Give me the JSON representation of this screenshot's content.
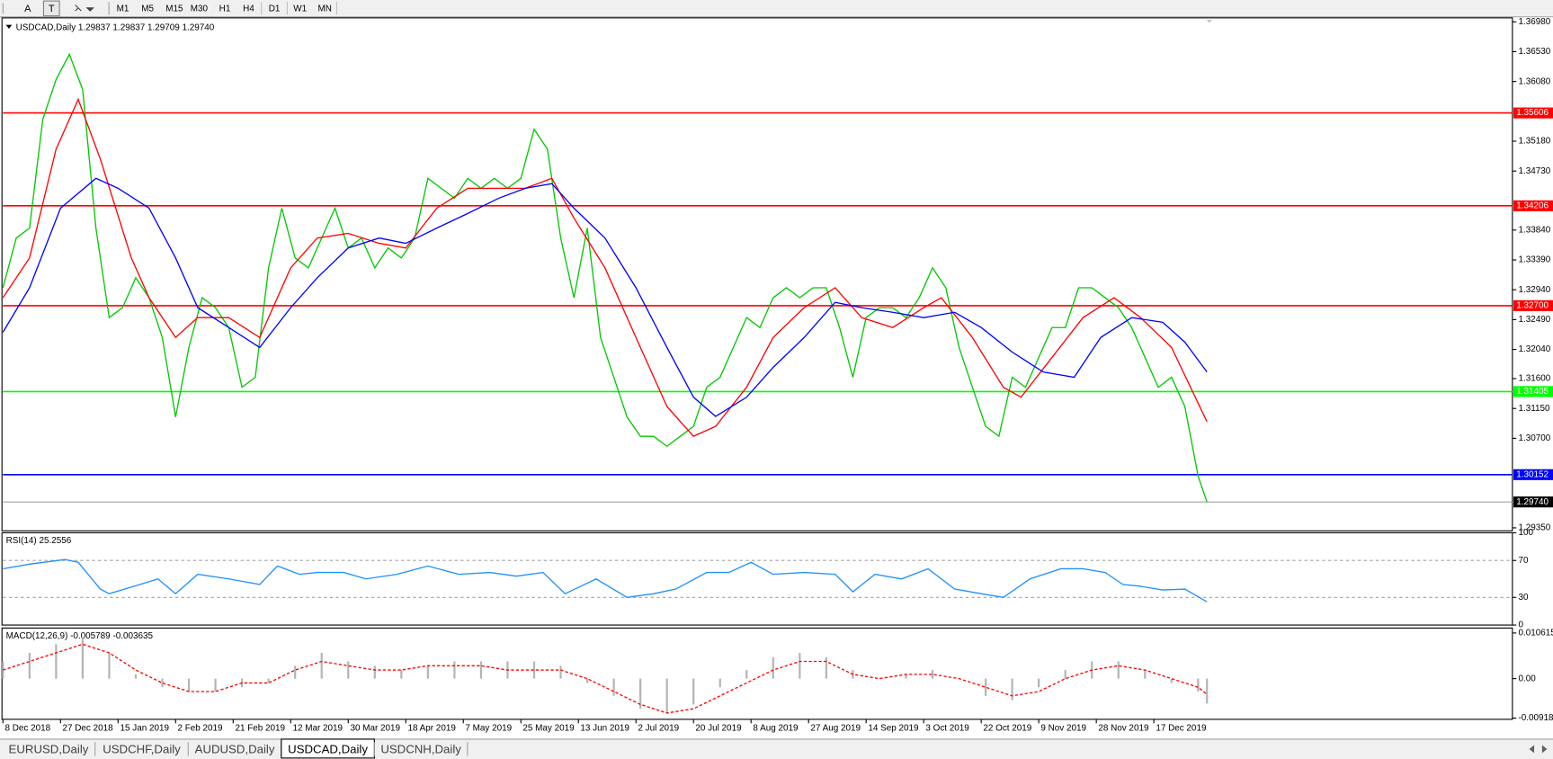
{
  "toolbar": {
    "tools": [
      "A",
      "T"
    ],
    "timeframes": [
      "M1",
      "M5",
      "M15",
      "M30",
      "H1",
      "H4",
      "D1",
      "W1",
      "MN"
    ]
  },
  "tabs": [
    {
      "label": "EURUSD,Daily",
      "active": false
    },
    {
      "label": "USDCHF,Daily",
      "active": false
    },
    {
      "label": "AUDUSD,Daily",
      "active": false
    },
    {
      "label": "USDCAD,Daily",
      "active": true
    },
    {
      "label": "USDCNH,Daily",
      "active": false
    }
  ],
  "chart_data": [
    {
      "type": "line",
      "title": "USDCAD,Daily  1.29837 1.29837 1.29709 1.29740",
      "xlim": [
        0,
        341
      ],
      "ylim": [
        1.29305,
        1.3704
      ],
      "yticks": [
        {
          "value": 1.3698,
          "label": "1.36980"
        },
        {
          "value": 1.3653,
          "label": "1.36530"
        },
        {
          "value": 1.3608,
          "label": "1.36080"
        },
        {
          "value": 1.3518,
          "label": "1.35180"
        },
        {
          "value": 1.3473,
          "label": "1.34730"
        },
        {
          "value": 1.3384,
          "label": "1.33840"
        },
        {
          "value": 1.3339,
          "label": "1.33390"
        },
        {
          "value": 1.3294,
          "label": "1.32940"
        },
        {
          "value": 1.3249,
          "label": "1.32490"
        },
        {
          "value": 1.3204,
          "label": "1.32040"
        },
        {
          "value": 1.316,
          "label": "1.31600"
        },
        {
          "value": 1.3115,
          "label": "1.31150"
        },
        {
          "value": 1.307,
          "label": "1.30700"
        },
        {
          "value": 1.2935,
          "label": "1.29350"
        }
      ],
      "levels": [
        {
          "value": 1.35606,
          "label": "1.35606",
          "color": "#ff0000"
        },
        {
          "value": 1.34206,
          "label": "1.34206",
          "color": "#ff0000"
        },
        {
          "value": 1.327,
          "label": "1.32700",
          "color": "#ff0000"
        },
        {
          "value": 1.31405,
          "label": "1.31405",
          "color": "#00ff00"
        },
        {
          "value": 1.30152,
          "label": "1.30152",
          "color": "#0000ff"
        }
      ],
      "last": {
        "value": 1.2974,
        "label": "1.29740"
      },
      "series": [
        {
          "color": "#00c800",
          "x": [
            0,
            3,
            6,
            9,
            12,
            15,
            18,
            21,
            24,
            27,
            30,
            33,
            36,
            39,
            42,
            45,
            48,
            51,
            54,
            57,
            60,
            63,
            66,
            69,
            72,
            75,
            78,
            81,
            84,
            87,
            90,
            93,
            96,
            99,
            102,
            105,
            108,
            111,
            114,
            117,
            120,
            123,
            126,
            129,
            132,
            135,
            138,
            141,
            144,
            147,
            150,
            153,
            156,
            159,
            162,
            165,
            168,
            171,
            174,
            177,
            180,
            183,
            186,
            189,
            192,
            195,
            198,
            201,
            204,
            207,
            210,
            213,
            216,
            219,
            222,
            225,
            228,
            231,
            234,
            237,
            240,
            243,
            246,
            249,
            252,
            255,
            258,
            261,
            264,
            267,
            270,
            272
          ],
          "values": [
            1.3297,
            1.3372,
            1.3387,
            1.3551,
            1.3611,
            1.3649,
            1.3596,
            1.3387,
            1.3252,
            1.3267,
            1.3312,
            1.3282,
            1.3222,
            1.3102,
            1.3207,
            1.3282,
            1.3267,
            1.3237,
            1.3147,
            1.3162,
            1.3327,
            1.3417,
            1.3342,
            1.3327,
            1.3372,
            1.3417,
            1.3357,
            1.3372,
            1.3327,
            1.3357,
            1.3342,
            1.3372,
            1.3462,
            1.3447,
            1.3432,
            1.3462,
            1.3447,
            1.3462,
            1.3447,
            1.3462,
            1.3536,
            1.3506,
            1.3372,
            1.3282,
            1.3387,
            1.3222,
            1.3162,
            1.3102,
            1.3073,
            1.3073,
            1.3058,
            1.3073,
            1.3088,
            1.3147,
            1.3162,
            1.3207,
            1.3252,
            1.3237,
            1.3282,
            1.3297,
            1.3282,
            1.3297,
            1.3297,
            1.3237,
            1.3162,
            1.3252,
            1.3267,
            1.3267,
            1.3252,
            1.3282,
            1.3327,
            1.3297,
            1.3207,
            1.3147,
            1.3088,
            1.3073,
            1.3162,
            1.3147,
            1.3192,
            1.3237,
            1.3237,
            1.3297,
            1.3297,
            1.3282,
            1.3267,
            1.3237,
            1.3192,
            1.3147,
            1.3162,
            1.3118,
            1.3013,
            1.2974
          ]
        },
        {
          "color": "#ff0000",
          "x": [
            0,
            6,
            12,
            17,
            22,
            29,
            33,
            39,
            44,
            51,
            58,
            65,
            71,
            78,
            85,
            91,
            98,
            105,
            112,
            118,
            124,
            129,
            136,
            143,
            150,
            156,
            161,
            168,
            174,
            181,
            188,
            194,
            201,
            208,
            212,
            219,
            226,
            230,
            237,
            244,
            251,
            257,
            264,
            272
          ],
          "values": [
            1.3282,
            1.3342,
            1.3506,
            1.3581,
            1.3491,
            1.3342,
            1.3282,
            1.3222,
            1.3252,
            1.3252,
            1.3222,
            1.3327,
            1.3372,
            1.3379,
            1.3364,
            1.3357,
            1.3417,
            1.3447,
            1.3447,
            1.3447,
            1.3462,
            1.3402,
            1.3327,
            1.3222,
            1.3118,
            1.3073,
            1.3088,
            1.3147,
            1.3222,
            1.3267,
            1.3297,
            1.3252,
            1.3237,
            1.3267,
            1.3282,
            1.3222,
            1.3147,
            1.3132,
            1.3192,
            1.3252,
            1.3282,
            1.3252,
            1.3207,
            1.3095
          ]
        },
        {
          "color": "#0000ff",
          "x": [
            0,
            6,
            13,
            21,
            26,
            33,
            39,
            44,
            51,
            58,
            65,
            71,
            78,
            85,
            91,
            98,
            105,
            112,
            118,
            124,
            129,
            136,
            143,
            150,
            156,
            161,
            168,
            174,
            181,
            188,
            194,
            201,
            208,
            215,
            221,
            228,
            235,
            242,
            248,
            255,
            262,
            267,
            272
          ],
          "values": [
            1.323,
            1.3297,
            1.3417,
            1.3462,
            1.3447,
            1.3417,
            1.3342,
            1.3267,
            1.3237,
            1.3207,
            1.3267,
            1.3312,
            1.3357,
            1.3372,
            1.3364,
            1.3387,
            1.3409,
            1.3432,
            1.3447,
            1.3454,
            1.3417,
            1.3372,
            1.3297,
            1.3207,
            1.3132,
            1.3103,
            1.3132,
            1.3177,
            1.3222,
            1.3275,
            1.3267,
            1.326,
            1.3252,
            1.326,
            1.3237,
            1.32,
            1.317,
            1.3162,
            1.3222,
            1.3252,
            1.3245,
            1.3215,
            1.317
          ]
        }
      ]
    },
    {
      "type": "line",
      "title": "RSI(14) 25.2556",
      "xlim": [
        0,
        341
      ],
      "ylim": [
        0,
        100
      ],
      "yticks": [
        100,
        70,
        30,
        0
      ],
      "dashed_levels": [
        70,
        30
      ],
      "series": [
        {
          "color": "#1e90ff",
          "x": [
            0,
            6,
            14,
            17,
            22,
            24,
            31,
            35,
            39,
            44,
            51,
            58,
            62,
            67,
            71,
            77,
            82,
            89,
            96,
            103,
            110,
            116,
            122,
            127,
            134,
            141,
            147,
            152,
            159,
            164,
            169,
            174,
            181,
            188,
            192,
            197,
            203,
            209,
            215,
            221,
            226,
            232,
            239,
            244,
            249,
            253,
            257,
            262,
            267,
            272
          ],
          "values": [
            61,
            66,
            71,
            68,
            39,
            34,
            44,
            50,
            34,
            55,
            50,
            44,
            64,
            55,
            57,
            57,
            50,
            55,
            64,
            55,
            57,
            53,
            57,
            34,
            50,
            30,
            34,
            39,
            57,
            57,
            68,
            55,
            57,
            55,
            36,
            55,
            50,
            61,
            39,
            34,
            30,
            50,
            61,
            61,
            57,
            44,
            42,
            38,
            39,
            25.2556
          ]
        }
      ]
    },
    {
      "type": "bar",
      "title": "MACD(12,26,9) -0.005789 -0.003635",
      "xlim": [
        0,
        341
      ],
      "ylim": [
        -0.00946,
        0.01177
      ],
      "yticks": [
        0.010615,
        {
          "value": 0,
          "label": "0.00"
        },
        -0.009181
      ],
      "xticks": [
        {
          "value": 0,
          "label": "8 Dec 2018"
        },
        {
          "value": 13,
          "label": "27 Dec 2018"
        },
        {
          "value": 26,
          "label": "15 Jan 2019"
        },
        {
          "value": 39,
          "label": "2 Feb 2019"
        },
        {
          "value": 52,
          "label": "21 Feb 2019"
        },
        {
          "value": 65,
          "label": "12 Mar 2019"
        },
        {
          "value": 78,
          "label": "30 Mar 2019"
        },
        {
          "value": 91,
          "label": "18 Apr 2019"
        },
        {
          "value": 104,
          "label": "7 May 2019"
        },
        {
          "value": 117,
          "label": "25 May 2019"
        },
        {
          "value": 130,
          "label": "13 Jun 2019"
        },
        {
          "value": 143,
          "label": "2 Jul 2019"
        },
        {
          "value": 156,
          "label": "20 Jul 2019"
        },
        {
          "value": 169,
          "label": "8 Aug 2019"
        },
        {
          "value": 182,
          "label": "27 Aug 2019"
        },
        {
          "value": 195,
          "label": "14 Sep 2019"
        },
        {
          "value": 208,
          "label": "3 Oct 2019"
        },
        {
          "value": 221,
          "label": "22 Oct 2019"
        },
        {
          "value": 234,
          "label": "9 Nov 2019"
        },
        {
          "value": 247,
          "label": "28 Nov 2019"
        },
        {
          "value": 260,
          "label": "17 Dec 2019"
        }
      ],
      "series": [
        {
          "type": "bar",
          "color": "#b4b4b4",
          "x": [
            0,
            6,
            12,
            18,
            24,
            30,
            36,
            42,
            48,
            54,
            60,
            66,
            72,
            78,
            84,
            90,
            96,
            102,
            108,
            114,
            120,
            126,
            132,
            138,
            144,
            150,
            156,
            162,
            168,
            174,
            180,
            186,
            192,
            198,
            204,
            210,
            216,
            222,
            228,
            234,
            240,
            246,
            252,
            258,
            264,
            270,
            272
          ],
          "values": [
            0.004,
            0.006,
            0.008,
            0.0095,
            0.006,
            0.001,
            -0.002,
            -0.003,
            -0.003,
            -0.002,
            -0.001,
            0.003,
            0.006,
            0.004,
            0.003,
            0.002,
            0.003,
            0.004,
            0.004,
            0.004,
            0.004,
            0.003,
            -0.001,
            -0.004,
            -0.007,
            -0.008,
            -0.006,
            -0.002,
            0.002,
            0.005,
            0.006,
            0.005,
            0.002,
            0,
            0.001,
            0.002,
            0,
            -0.004,
            -0.005,
            -0.002,
            0.002,
            0.004,
            0.004,
            0.002,
            -0.001,
            -0.003,
            -0.005789
          ]
        },
        {
          "type": "line",
          "color": "#ff0000",
          "dash": true,
          "x": [
            0,
            6,
            12,
            18,
            24,
            30,
            36,
            42,
            48,
            54,
            60,
            66,
            72,
            78,
            84,
            90,
            96,
            102,
            108,
            114,
            120,
            126,
            132,
            138,
            144,
            150,
            156,
            162,
            168,
            174,
            180,
            186,
            192,
            198,
            204,
            210,
            216,
            222,
            228,
            234,
            240,
            246,
            252,
            258,
            264,
            270,
            272
          ],
          "values": [
            0.002,
            0.004,
            0.006,
            0.008,
            0.006,
            0.002,
            -0.001,
            -0.003,
            -0.003,
            -0.001,
            -0.001,
            0.002,
            0.004,
            0.003,
            0.002,
            0.002,
            0.003,
            0.003,
            0.003,
            0.002,
            0.002,
            0.002,
            0,
            -0.003,
            -0.006,
            -0.008,
            -0.007,
            -0.004,
            -0.001,
            0.002,
            0.004,
            0.004,
            0.001,
            0,
            0.001,
            0.001,
            0,
            -0.002,
            -0.004,
            -0.003,
            0,
            0.002,
            0.003,
            0.002,
            0,
            -0.002,
            -0.003635
          ]
        }
      ]
    }
  ]
}
